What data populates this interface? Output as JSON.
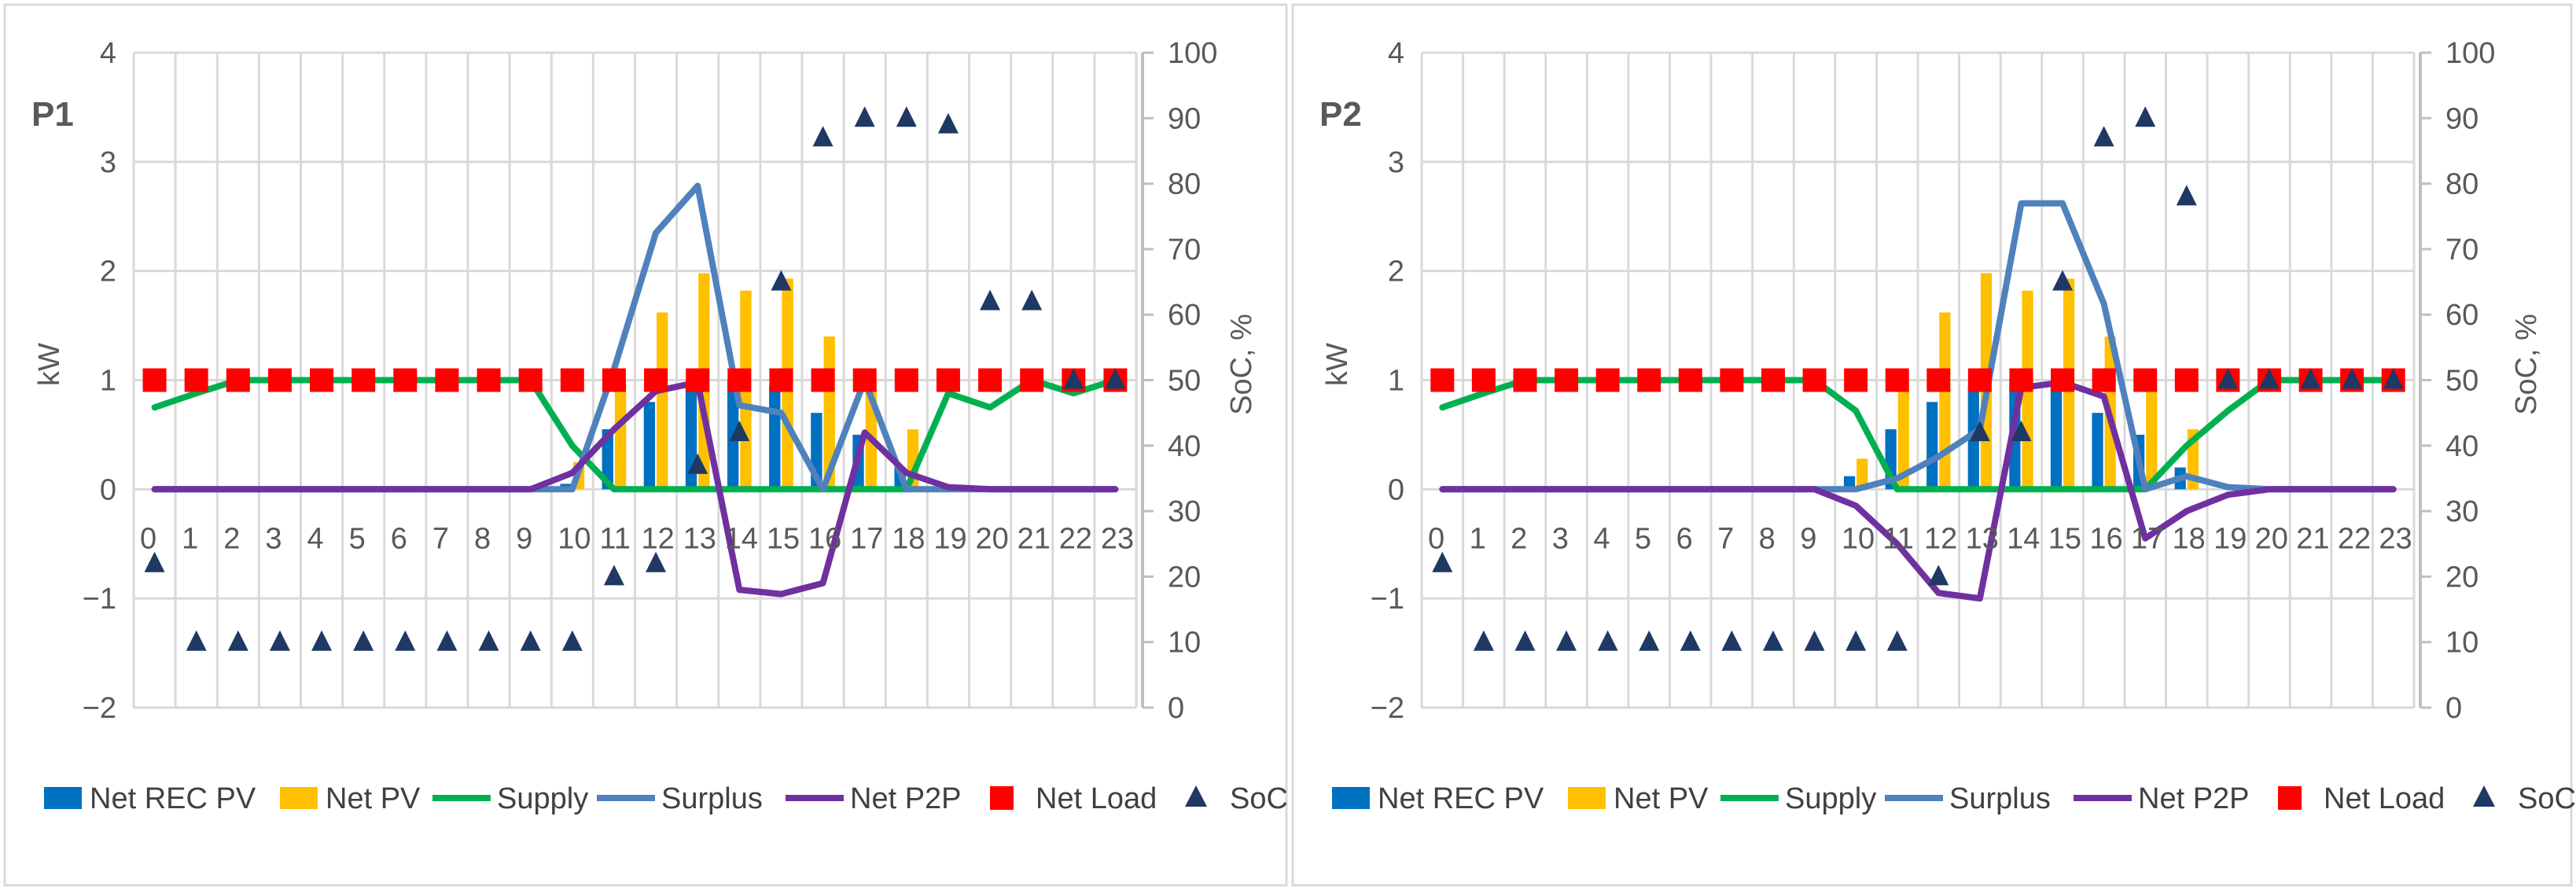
{
  "colors": {
    "net_rec_pv": "#0070C0",
    "net_pv": "#FFC000",
    "supply": "#00B050",
    "surplus": "#4F81BD",
    "net_p2p": "#7030A0",
    "net_load": "#FF0000",
    "soc": "#1F3864",
    "grid": "#D9D9D9",
    "axis": "#BFBFBF",
    "text": "#595959"
  },
  "chart_data": [
    {
      "type": "bar",
      "title": "P1",
      "xlabel": "",
      "ylabel": "kW",
      "y2label": "SoC, %",
      "ylim": [
        -2,
        4
      ],
      "y2lim": [
        0,
        100
      ],
      "yticks": [
        "−2",
        "−1",
        "0",
        "1",
        "2",
        "3",
        "4"
      ],
      "y2ticks": [
        "0",
        "10",
        "20",
        "30",
        "40",
        "50",
        "60",
        "70",
        "80",
        "90",
        "100"
      ],
      "categories": [
        "0",
        "1",
        "2",
        "3",
        "4",
        "5",
        "6",
        "7",
        "8",
        "9",
        "10",
        "11",
        "12",
        "13",
        "14",
        "15",
        "16",
        "17",
        "18",
        "19",
        "20",
        "21",
        "22",
        "23"
      ],
      "grid": true,
      "legend_position": "bottom",
      "series": [
        {
          "name": "Net REC PV",
          "kind": "bar",
          "axis": "left",
          "values": [
            0,
            0,
            0,
            0,
            0,
            0,
            0,
            0,
            0,
            0,
            0.05,
            0.55,
            0.8,
            0.95,
            1.0,
            0.95,
            0.7,
            0.5,
            0.2,
            0,
            0,
            0,
            0,
            0
          ]
        },
        {
          "name": "Net PV",
          "kind": "bar",
          "axis": "left",
          "values": [
            0,
            0,
            0,
            0,
            0,
            0,
            0,
            0,
            0,
            0,
            0.25,
            1.0,
            1.62,
            1.98,
            1.82,
            1.93,
            1.4,
            1.0,
            0.55,
            0,
            0,
            0,
            0,
            0
          ]
        },
        {
          "name": "Supply",
          "kind": "line",
          "axis": "left",
          "values": [
            0.75,
            0.88,
            1.0,
            1.0,
            1.0,
            1.0,
            1.0,
            1.0,
            1.0,
            1.0,
            0.4,
            0,
            0,
            0,
            0,
            0,
            0,
            0,
            0,
            0.88,
            0.75,
            1.0,
            0.88,
            1.0
          ]
        },
        {
          "name": "Surplus",
          "kind": "line",
          "axis": "left",
          "values": [
            0,
            0,
            0,
            0,
            0,
            0,
            0,
            0,
            0,
            0,
            0,
            1.1,
            2.35,
            2.78,
            0.77,
            0.7,
            0,
            1.0,
            0,
            0,
            0,
            0,
            0,
            0
          ]
        },
        {
          "name": "Net P2P",
          "kind": "line",
          "axis": "left",
          "values": [
            0,
            0,
            0,
            0,
            0,
            0,
            0,
            0,
            0,
            0,
            0.15,
            0.55,
            0.9,
            0.98,
            -0.92,
            -0.96,
            -0.86,
            0.52,
            0.15,
            0.02,
            0,
            0,
            0,
            0
          ]
        },
        {
          "name": "Net Load",
          "kind": "marker-square",
          "axis": "left",
          "values": [
            1,
            1,
            1,
            1,
            1,
            1,
            1,
            1,
            1,
            1,
            1,
            1,
            1,
            1,
            1,
            1,
            1,
            1,
            1,
            1,
            1,
            1,
            1,
            1
          ]
        },
        {
          "name": "SoC",
          "kind": "marker-triangle",
          "axis": "right",
          "values": [
            22,
            10,
            10,
            10,
            10,
            10,
            10,
            10,
            10,
            10,
            10,
            20,
            22,
            37,
            42,
            65,
            87,
            90,
            90,
            89,
            62,
            62,
            50,
            50
          ]
        }
      ]
    },
    {
      "type": "bar",
      "title": "P2",
      "xlabel": "",
      "ylabel": "kW",
      "y2label": "SoC, %",
      "ylim": [
        -2,
        4
      ],
      "y2lim": [
        0,
        100
      ],
      "yticks": [
        "−2",
        "−1",
        "0",
        "1",
        "2",
        "3",
        "4"
      ],
      "y2ticks": [
        "0",
        "10",
        "20",
        "30",
        "40",
        "50",
        "60",
        "70",
        "80",
        "90",
        "100"
      ],
      "categories": [
        "0",
        "1",
        "2",
        "3",
        "4",
        "5",
        "6",
        "7",
        "8",
        "9",
        "10",
        "11",
        "12",
        "13",
        "14",
        "15",
        "16",
        "17",
        "18",
        "19",
        "20",
        "21",
        "22",
        "23"
      ],
      "grid": true,
      "legend_position": "bottom",
      "series": [
        {
          "name": "Net REC PV",
          "kind": "bar",
          "axis": "left",
          "values": [
            0,
            0,
            0,
            0,
            0,
            0,
            0,
            0,
            0,
            0,
            0.12,
            0.55,
            0.8,
            0.95,
            1.0,
            0.95,
            0.7,
            0.5,
            0.2,
            0,
            0,
            0,
            0,
            0
          ]
        },
        {
          "name": "Net PV",
          "kind": "bar",
          "axis": "left",
          "values": [
            0,
            0,
            0,
            0,
            0,
            0,
            0,
            0,
            0,
            0,
            0.28,
            1.0,
            1.62,
            1.98,
            1.82,
            1.93,
            1.4,
            1.0,
            0.55,
            0,
            0,
            0,
            0,
            0
          ]
        },
        {
          "name": "Supply",
          "kind": "line",
          "axis": "left",
          "values": [
            0.75,
            0.88,
            1.0,
            1.0,
            1.0,
            1.0,
            1.0,
            1.0,
            1.0,
            1.0,
            0.72,
            0,
            0,
            0,
            0,
            0,
            0,
            0,
            0.4,
            0.72,
            1.0,
            1.0,
            1.0,
            1.0
          ]
        },
        {
          "name": "Surplus",
          "kind": "line",
          "axis": "left",
          "values": [
            0,
            0,
            0,
            0,
            0,
            0,
            0,
            0,
            0,
            0,
            0,
            0.1,
            0.3,
            0.55,
            2.62,
            2.62,
            1.7,
            0,
            0.12,
            0.02,
            0,
            0,
            0,
            0
          ]
        },
        {
          "name": "Net P2P",
          "kind": "line",
          "axis": "left",
          "values": [
            0,
            0,
            0,
            0,
            0,
            0,
            0,
            0,
            0,
            0,
            -0.15,
            -0.5,
            -0.95,
            -1.0,
            0.93,
            0.98,
            0.85,
            -0.45,
            -0.2,
            -0.05,
            0,
            0,
            0,
            0
          ]
        },
        {
          "name": "Net Load",
          "kind": "marker-square",
          "axis": "left",
          "values": [
            1,
            1,
            1,
            1,
            1,
            1,
            1,
            1,
            1,
            1,
            1,
            1,
            1,
            1,
            1,
            1,
            1,
            1,
            1,
            1,
            1,
            1,
            1,
            1
          ]
        },
        {
          "name": "SoC",
          "kind": "marker-triangle",
          "axis": "right",
          "values": [
            22,
            10,
            10,
            10,
            10,
            10,
            10,
            10,
            10,
            10,
            10,
            10,
            20,
            42,
            42,
            65,
            87,
            90,
            78,
            50,
            50,
            50,
            50,
            50
          ]
        }
      ]
    }
  ]
}
